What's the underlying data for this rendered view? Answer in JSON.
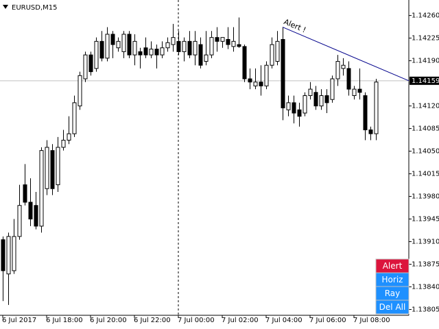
{
  "chart_data": {
    "type": "candlestick",
    "title": "EURUSD,M15",
    "open": [
      1.13913,
      1.1386,
      1.13865,
      1.13918,
      1.13998,
      1.13971,
      1.13966,
      1.13934,
      1.13992,
      1.14051,
      1.13998,
      1.14056,
      1.14067,
      1.14077,
      1.1412,
      1.14162,
      1.14199,
      1.14178,
      1.1422,
      1.14194,
      1.14231,
      1.1421,
      1.14204,
      1.14231,
      1.14199,
      1.14204,
      1.1421,
      1.14199,
      1.14208,
      1.14199,
      1.1421,
      1.14215,
      1.1422,
      1.14204,
      1.1422,
      1.14199,
      1.14215,
      1.14189,
      1.14199,
      1.14226,
      1.1422,
      1.14223,
      1.14212,
      1.14215,
      1.14212,
      1.14162,
      1.14151,
      1.14157,
      1.14151,
      1.14183,
      1.14189,
      1.14223,
      1.14114,
      1.14125,
      1.14114,
      1.14109,
      1.14136,
      1.14141,
      1.1412,
      1.14136,
      1.1413,
      1.14162,
      1.14178,
      1.14178,
      1.14136,
      1.14146,
      1.14136,
      1.14083,
      1.14077
    ],
    "high": [
      1.13918,
      1.13924,
      1.13945,
      1.13998,
      1.1403,
      1.14008,
      1.13987,
      1.14056,
      1.14067,
      1.14061,
      1.14072,
      1.14083,
      1.14104,
      1.14136,
      1.14173,
      1.14204,
      1.14204,
      1.14226,
      1.14236,
      1.14242,
      1.14236,
      1.14226,
      1.14236,
      1.14236,
      1.14231,
      1.1421,
      1.14226,
      1.1422,
      1.14215,
      1.1422,
      1.14226,
      1.14247,
      1.14236,
      1.14226,
      1.14236,
      1.14236,
      1.14226,
      1.14236,
      1.14236,
      1.14242,
      1.14226,
      1.14242,
      1.14242,
      1.14257,
      1.14215,
      1.14178,
      1.14178,
      1.14183,
      1.14189,
      1.14226,
      1.14236,
      1.14242,
      1.14136,
      1.14136,
      1.14125,
      1.14141,
      1.14157,
      1.14151,
      1.14146,
      1.14146,
      1.14167,
      1.14199,
      1.14194,
      1.14189,
      1.14151,
      1.14178,
      1.14141,
      1.14088,
      1.14162
    ],
    "low": [
      1.13818,
      1.13812,
      1.1386,
      1.13913,
      1.13966,
      1.13934,
      1.13929,
      1.13924,
      1.13982,
      1.13982,
      1.13987,
      1.14051,
      1.14061,
      1.14072,
      1.14114,
      1.14157,
      1.14167,
      1.14173,
      1.14189,
      1.14189,
      1.14194,
      1.14204,
      1.14194,
      1.14194,
      1.14183,
      1.14178,
      1.14194,
      1.14194,
      1.14178,
      1.14194,
      1.14204,
      1.14204,
      1.14199,
      1.14189,
      1.14194,
      1.14183,
      1.14178,
      1.14183,
      1.14194,
      1.14204,
      1.1421,
      1.14208,
      1.14204,
      1.1421,
      1.14157,
      1.14146,
      1.14146,
      1.14136,
      1.14146,
      1.14178,
      1.14183,
      1.14098,
      1.14104,
      1.14093,
      1.14088,
      1.14104,
      1.1413,
      1.14114,
      1.14114,
      1.14109,
      1.14125,
      1.14151,
      1.14167,
      1.14136,
      1.1413,
      1.1413,
      1.14067,
      1.14067,
      1.14067
    ],
    "close": [
      1.13865,
      1.13918,
      1.13918,
      1.13966,
      1.13971,
      1.13945,
      1.13934,
      1.14051,
      1.14056,
      1.13992,
      1.14056,
      1.14067,
      1.14077,
      1.14125,
      1.14167,
      1.14199,
      1.14173,
      1.1422,
      1.14194,
      1.14231,
      1.14215,
      1.1422,
      1.14231,
      1.14199,
      1.1422,
      1.14199,
      1.14199,
      1.14208,
      1.14199,
      1.1421,
      1.14218,
      1.14226,
      1.14204,
      1.1422,
      1.14199,
      1.1422,
      1.14183,
      1.14199,
      1.14226,
      1.1422,
      1.14226,
      1.14215,
      1.1422,
      1.14212,
      1.14162,
      1.14157,
      1.14157,
      1.14151,
      1.14183,
      1.14215,
      1.1422,
      1.14117,
      1.14125,
      1.14109,
      1.14104,
      1.14136,
      1.14146,
      1.1412,
      1.14136,
      1.14125,
      1.14162,
      1.14189,
      1.14183,
      1.14146,
      1.14146,
      1.14141,
      1.14083,
      1.14077,
      1.14157
    ],
    "xlim": [
      -0.5,
      74
    ],
    "xticks": [
      {
        "value": 0,
        "label": "6 Jul 2017"
      },
      {
        "value": 8,
        "label": "6 Jul 18:00"
      },
      {
        "value": 16,
        "label": "6 Jul 20:00"
      },
      {
        "value": 24,
        "label": "6 Jul 22:00"
      },
      {
        "value": 32,
        "label": "7 Jul 00:00"
      },
      {
        "value": 40,
        "label": "7 Jul 02:00"
      },
      {
        "value": 48,
        "label": "7 Jul 04:00"
      },
      {
        "value": 56,
        "label": "7 Jul 06:00"
      },
      {
        "value": 64,
        "label": "7 Jul 08:00"
      }
    ],
    "ylim": [
      1.13796,
      1.14284
    ],
    "yticks": [
      {
        "value": 1.1426,
        "label": "1.14260"
      },
      1.14225,
      {
        "value": 1.1419,
        "label": "1.14190"
      },
      {
        "value": 1.1412,
        "label": "1.14120"
      },
      1.14085,
      {
        "value": 1.1405,
        "label": "1.14050"
      },
      1.14015,
      {
        "value": 1.1398,
        "label": "1.13980"
      },
      1.13945,
      {
        "value": 1.1391,
        "label": "1.13910"
      },
      1.13875,
      {
        "value": 1.1384,
        "label": "1.13840"
      },
      1.13805
    ],
    "current_price": 1.14159,
    "trendline": {
      "label": "Alert !",
      "x": [
        51,
        74
      ],
      "y": [
        1.14242,
        1.14159
      ],
      "color": "#00008b"
    }
  },
  "buttons": [
    {
      "label": "Alert",
      "color": "#dc143c"
    },
    {
      "label": "Horiz",
      "color": "#1e90ff"
    },
    {
      "label": "Ray",
      "color": "#1e90ff"
    },
    {
      "label": "Del All",
      "color": "#1e90ff"
    }
  ]
}
